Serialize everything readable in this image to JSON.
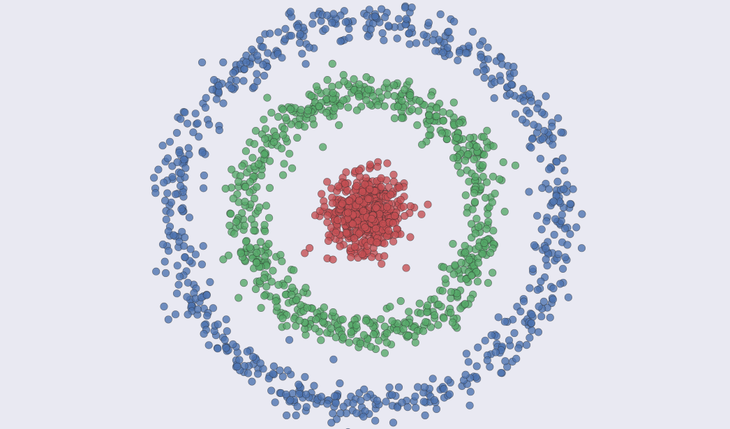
{
  "chart_data": {
    "type": "scatter",
    "title": "",
    "xlabel": "",
    "ylabel": "",
    "grid": false,
    "legend": "none",
    "xlim": [
      -1.15,
      1.15
    ],
    "ylim": [
      -1.15,
      1.15
    ],
    "background": "#e9e9f2",
    "series": [
      {
        "color": "#4c72b0",
        "shape": "ring",
        "center": [
          0,
          0
        ],
        "radius": 1.0,
        "radial_spread": 0.055,
        "n_points": 700
      },
      {
        "color": "#55a868",
        "shape": "ring",
        "center": [
          0,
          0
        ],
        "radius": 0.62,
        "radial_spread": 0.055,
        "n_points": 700
      },
      {
        "color": "#c44e52",
        "shape": "cluster",
        "center": [
          0,
          0
        ],
        "radius": 0.0,
        "radial_spread": 0.16,
        "n_points": 500
      }
    ]
  }
}
